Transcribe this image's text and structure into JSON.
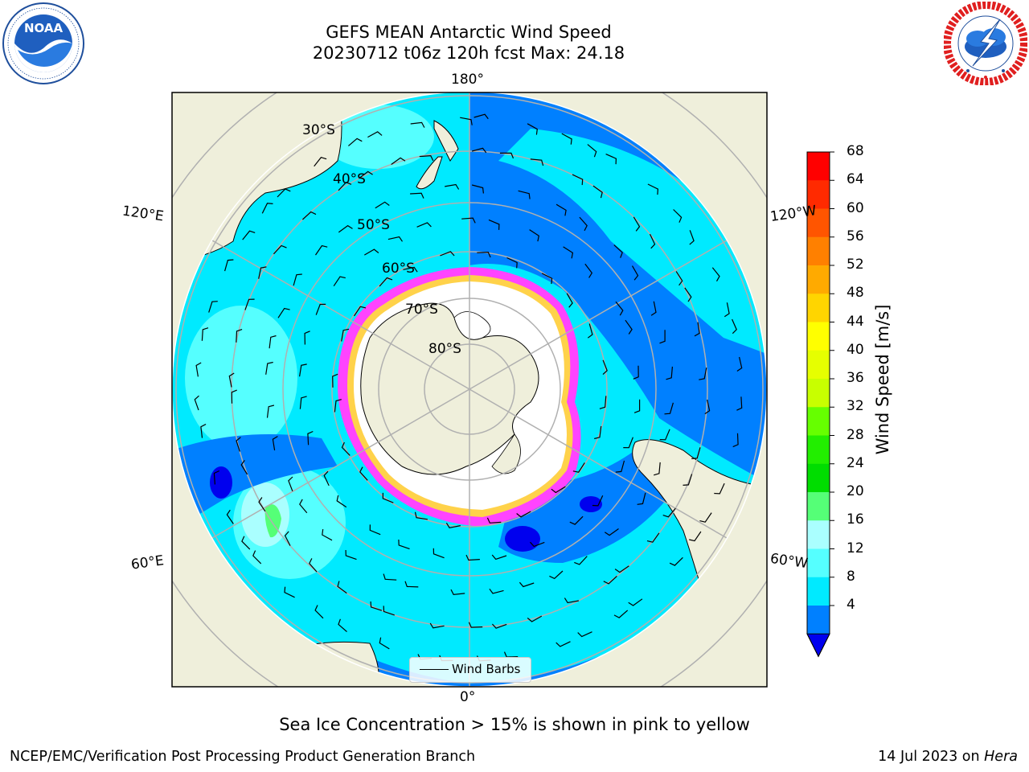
{
  "header": {
    "title_line1": "GEFS MEAN Antarctic Wind Speed",
    "title_line2": "20230712 t06z 120h fcst   Max: 24.18"
  },
  "logos": {
    "left": "noaa-logo",
    "right": "nws-logo"
  },
  "map": {
    "projection": "south-polar-stereographic",
    "lon_labels": {
      "top": "180°",
      "bottom": "0°",
      "upper_left": "120°E",
      "upper_right": "120°W",
      "lower_left": "60°E",
      "lower_right": "60°W"
    },
    "lat_labels": [
      "30°S",
      "40°S",
      "50°S",
      "60°S",
      "70°S",
      "80°S"
    ],
    "land_color": "#efefdb",
    "sea_ice_colors": [
      "#ff44ff",
      "#ffd24a"
    ]
  },
  "colorbar": {
    "label": "Wind Speed [m/s]",
    "ticks": [
      "68",
      "64",
      "60",
      "56",
      "52",
      "48",
      "44",
      "40",
      "36",
      "32",
      "28",
      "24",
      "20",
      "16",
      "12",
      "8",
      "4"
    ],
    "colors": [
      "#ff0000",
      "#ff2a00",
      "#ff5500",
      "#ff8000",
      "#ffaa00",
      "#ffd500",
      "#ffff00",
      "#e6ff00",
      "#c8ff00",
      "#66ff00",
      "#22ee00",
      "#00dd00",
      "#55ff77",
      "#aaffff",
      "#55ffff",
      "#00eaff",
      "#0080ff"
    ],
    "extend_color": "#0000ee"
  },
  "legend": {
    "label": "Wind Barbs"
  },
  "note": "Sea Ice Concentration > 15% is shown in pink to yellow",
  "footer": {
    "left": "NCEP/EMC/Verification Post Processing Product Generation Branch",
    "right_date": "14 Jul 2023 on ",
    "right_host": "Hera"
  }
}
